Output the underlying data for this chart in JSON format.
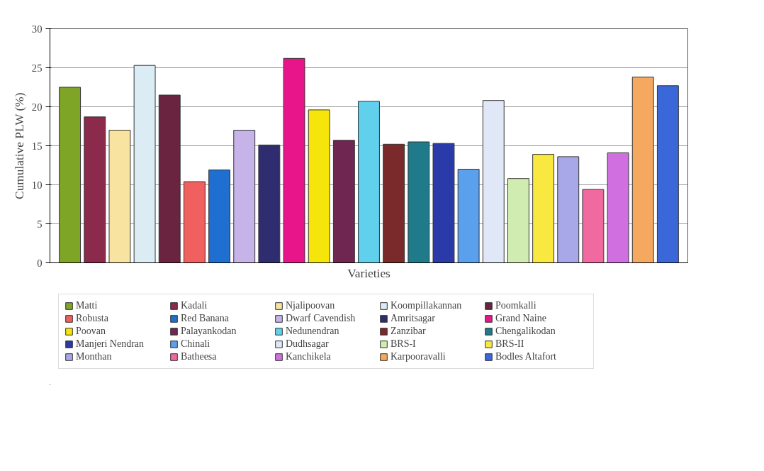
{
  "chart_data": {
    "type": "bar",
    "xlabel": "Varieties",
    "ylabel": "Cumulative PLW (%)",
    "categories": [
      null,
      null,
      null,
      null,
      null,
      null,
      null,
      null,
      null,
      null,
      null,
      null,
      null,
      null,
      null,
      null,
      null,
      null,
      null,
      null,
      null,
      null,
      null,
      null,
      null
    ],
    "ylim": [
      0,
      30
    ],
    "yticks": [
      0,
      5,
      10,
      15,
      20,
      25,
      30
    ],
    "grid": "y",
    "legend": "bottom",
    "series": [
      {
        "name": "Matti",
        "color": "#7fa526",
        "values": [
          22.5,
          null,
          null,
          null,
          null,
          null,
          null,
          null,
          null,
          null,
          null,
          null,
          null,
          null,
          null,
          null,
          null,
          null,
          null,
          null,
          null,
          null,
          null,
          null,
          null
        ]
      },
      {
        "name": "Kadali",
        "color": "#8b2a4a",
        "values": [
          null,
          18.7,
          null,
          null,
          null,
          null,
          null,
          null,
          null,
          null,
          null,
          null,
          null,
          null,
          null,
          null,
          null,
          null,
          null,
          null,
          null,
          null,
          null,
          null,
          null
        ]
      },
      {
        "name": "Njalipoovan",
        "color": "#f8e3a0",
        "values": [
          null,
          null,
          17.0,
          null,
          null,
          null,
          null,
          null,
          null,
          null,
          null,
          null,
          null,
          null,
          null,
          null,
          null,
          null,
          null,
          null,
          null,
          null,
          null,
          null,
          null
        ]
      },
      {
        "name": "Koompillakannan",
        "color": "#dcecf5",
        "values": [
          null,
          null,
          null,
          25.3,
          null,
          null,
          null,
          null,
          null,
          null,
          null,
          null,
          null,
          null,
          null,
          null,
          null,
          null,
          null,
          null,
          null,
          null,
          null,
          null,
          null
        ]
      },
      {
        "name": "Poomkalli",
        "color": "#6b2440",
        "values": [
          null,
          null,
          null,
          null,
          21.5,
          null,
          null,
          null,
          null,
          null,
          null,
          null,
          null,
          null,
          null,
          null,
          null,
          null,
          null,
          null,
          null,
          null,
          null,
          null,
          null
        ]
      },
      {
        "name": "Robusta",
        "color": "#f0605f",
        "values": [
          null,
          null,
          null,
          null,
          null,
          10.4,
          null,
          null,
          null,
          null,
          null,
          null,
          null,
          null,
          null,
          null,
          null,
          null,
          null,
          null,
          null,
          null,
          null,
          null,
          null
        ]
      },
      {
        "name": "Red Banana",
        "color": "#1e6fd0",
        "values": [
          null,
          null,
          null,
          null,
          null,
          null,
          11.9,
          null,
          null,
          null,
          null,
          null,
          null,
          null,
          null,
          null,
          null,
          null,
          null,
          null,
          null,
          null,
          null,
          null,
          null
        ]
      },
      {
        "name": "Dwarf Cavendish",
        "color": "#c6b3e8",
        "values": [
          null,
          null,
          null,
          null,
          null,
          null,
          null,
          17.0,
          null,
          null,
          null,
          null,
          null,
          null,
          null,
          null,
          null,
          null,
          null,
          null,
          null,
          null,
          null,
          null,
          null
        ]
      },
      {
        "name": "Amritsagar",
        "color": "#2f2d70",
        "values": [
          null,
          null,
          null,
          null,
          null,
          null,
          null,
          null,
          15.1,
          null,
          null,
          null,
          null,
          null,
          null,
          null,
          null,
          null,
          null,
          null,
          null,
          null,
          null,
          null,
          null
        ]
      },
      {
        "name": "Grand Naine",
        "color": "#e8148a",
        "values": [
          null,
          null,
          null,
          null,
          null,
          null,
          null,
          null,
          null,
          26.2,
          null,
          null,
          null,
          null,
          null,
          null,
          null,
          null,
          null,
          null,
          null,
          null,
          null,
          null,
          null
        ]
      },
      {
        "name": "Poovan",
        "color": "#f5e50a",
        "values": [
          null,
          null,
          null,
          null,
          null,
          null,
          null,
          null,
          null,
          null,
          19.6,
          null,
          null,
          null,
          null,
          null,
          null,
          null,
          null,
          null,
          null,
          null,
          null,
          null,
          null
        ]
      },
      {
        "name": "Palayankodan",
        "color": "#6f2650",
        "values": [
          null,
          null,
          null,
          null,
          null,
          null,
          null,
          null,
          null,
          null,
          null,
          15.7,
          null,
          null,
          null,
          null,
          null,
          null,
          null,
          null,
          null,
          null,
          null,
          null,
          null
        ]
      },
      {
        "name": "Nedunendran",
        "color": "#60d0ec",
        "values": [
          null,
          null,
          null,
          null,
          null,
          null,
          null,
          null,
          null,
          null,
          null,
          null,
          20.7,
          null,
          null,
          null,
          null,
          null,
          null,
          null,
          null,
          null,
          null,
          null,
          null
        ]
      },
      {
        "name": "Zanzibar",
        "color": "#7a2a2a",
        "values": [
          null,
          null,
          null,
          null,
          null,
          null,
          null,
          null,
          null,
          null,
          null,
          null,
          null,
          15.2,
          null,
          null,
          null,
          null,
          null,
          null,
          null,
          null,
          null,
          null,
          null
        ]
      },
      {
        "name": "Chengalikodan",
        "color": "#1f7a8a",
        "values": [
          null,
          null,
          null,
          null,
          null,
          null,
          null,
          null,
          null,
          null,
          null,
          null,
          null,
          null,
          15.5,
          null,
          null,
          null,
          null,
          null,
          null,
          null,
          null,
          null,
          null
        ]
      },
      {
        "name": "Manjeri Nendran",
        "color": "#2a3aa8",
        "values": [
          null,
          null,
          null,
          null,
          null,
          null,
          null,
          null,
          null,
          null,
          null,
          null,
          null,
          null,
          null,
          15.3,
          null,
          null,
          null,
          null,
          null,
          null,
          null,
          null,
          null
        ]
      },
      {
        "name": "Chinali",
        "color": "#5aa0ec",
        "values": [
          null,
          null,
          null,
          null,
          null,
          null,
          null,
          null,
          null,
          null,
          null,
          null,
          null,
          null,
          null,
          null,
          12.0,
          null,
          null,
          null,
          null,
          null,
          null,
          null,
          null
        ]
      },
      {
        "name": "Dudhsagar",
        "color": "#e0e8f8",
        "values": [
          null,
          null,
          null,
          null,
          null,
          null,
          null,
          null,
          null,
          null,
          null,
          null,
          null,
          null,
          null,
          null,
          null,
          20.8,
          null,
          null,
          null,
          null,
          null,
          null,
          null
        ]
      },
      {
        "name": "BRS-I",
        "color": "#d0ecb0",
        "values": [
          null,
          null,
          null,
          null,
          null,
          null,
          null,
          null,
          null,
          null,
          null,
          null,
          null,
          null,
          null,
          null,
          null,
          null,
          10.8,
          null,
          null,
          null,
          null,
          null,
          null
        ]
      },
      {
        "name": "BRS-II",
        "color": "#f8e840",
        "values": [
          null,
          null,
          null,
          null,
          null,
          null,
          null,
          null,
          null,
          null,
          null,
          null,
          null,
          null,
          null,
          null,
          null,
          null,
          null,
          13.9,
          null,
          null,
          null,
          null,
          null
        ]
      },
      {
        "name": "Monthan",
        "color": "#a8a8e8",
        "values": [
          null,
          null,
          null,
          null,
          null,
          null,
          null,
          null,
          null,
          null,
          null,
          null,
          null,
          null,
          null,
          null,
          null,
          null,
          null,
          null,
          13.6,
          null,
          null,
          null,
          null
        ]
      },
      {
        "name": "Batheesa",
        "color": "#f06aa0",
        "values": [
          null,
          null,
          null,
          null,
          null,
          null,
          null,
          null,
          null,
          null,
          null,
          null,
          null,
          null,
          null,
          null,
          null,
          null,
          null,
          null,
          null,
          9.4,
          null,
          null,
          null
        ]
      },
      {
        "name": "Kanchikela",
        "color": "#d070e0",
        "values": [
          null,
          null,
          null,
          null,
          null,
          null,
          null,
          null,
          null,
          null,
          null,
          null,
          null,
          null,
          null,
          null,
          null,
          null,
          null,
          null,
          null,
          null,
          14.1,
          null,
          null
        ]
      },
      {
        "name": "Karpooravalli",
        "color": "#f4a860",
        "values": [
          null,
          null,
          null,
          null,
          null,
          null,
          null,
          null,
          null,
          null,
          null,
          null,
          null,
          null,
          null,
          null,
          null,
          null,
          null,
          null,
          null,
          null,
          null,
          23.8,
          null
        ]
      },
      {
        "name": "Bodles Altafort",
        "color": "#3a68d8",
        "values": [
          null,
          null,
          null,
          null,
          null,
          null,
          null,
          null,
          null,
          null,
          null,
          null,
          null,
          null,
          null,
          null,
          null,
          null,
          null,
          null,
          null,
          null,
          null,
          null,
          22.7
        ]
      }
    ]
  }
}
